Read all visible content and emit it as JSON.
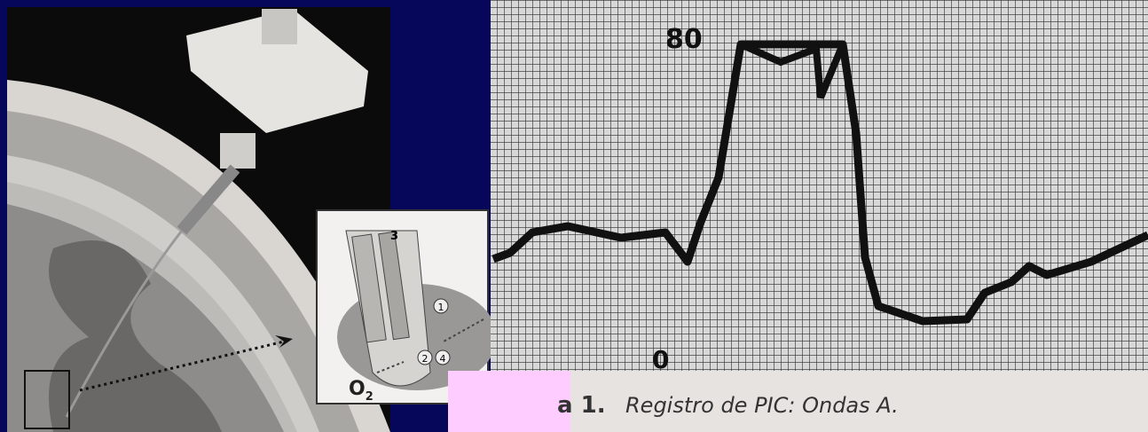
{
  "recording": {
    "top_label": "80",
    "bottom_label": "0"
  },
  "caption": {
    "figure": "a 1.",
    "text": "Registro de PIC: Ondas A."
  },
  "inset": {
    "gas": "O",
    "gas_subscript": "2",
    "markers": [
      "1",
      "2",
      "3",
      "4"
    ]
  }
}
